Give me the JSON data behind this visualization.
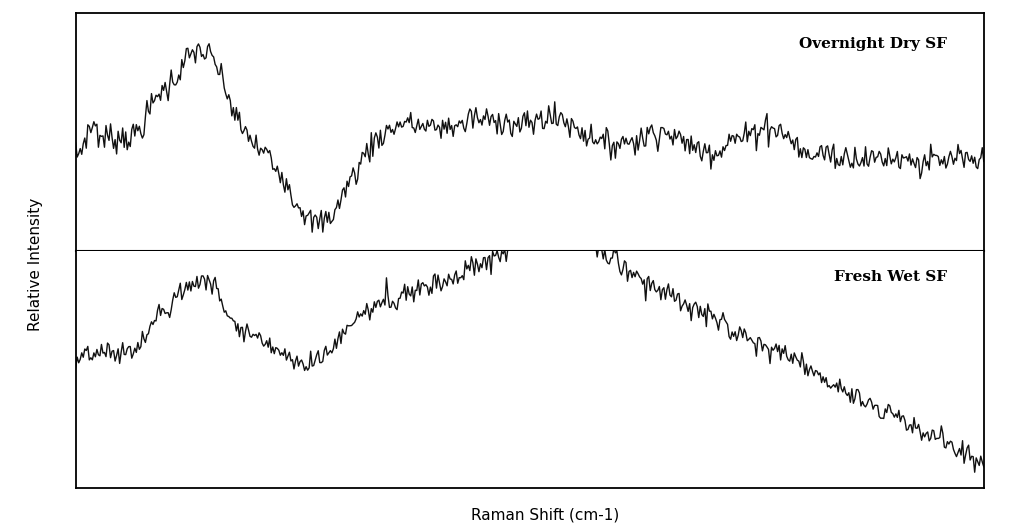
{
  "xlabel": "Raman Shift (cm-1)",
  "ylabel": "Relative Intensity",
  "label_top": "Overnight Dry SF",
  "label_bottom": "Fresh Wet SF",
  "background_color": "#ffffff",
  "line_color": "#111111",
  "line_width": 1.0,
  "n_points": 600,
  "dry_sf_seed": 7,
  "wet_sf_seed": 13,
  "label_fontsize": 11,
  "label_fontweight": "bold",
  "axis_label_fontsize": 11
}
